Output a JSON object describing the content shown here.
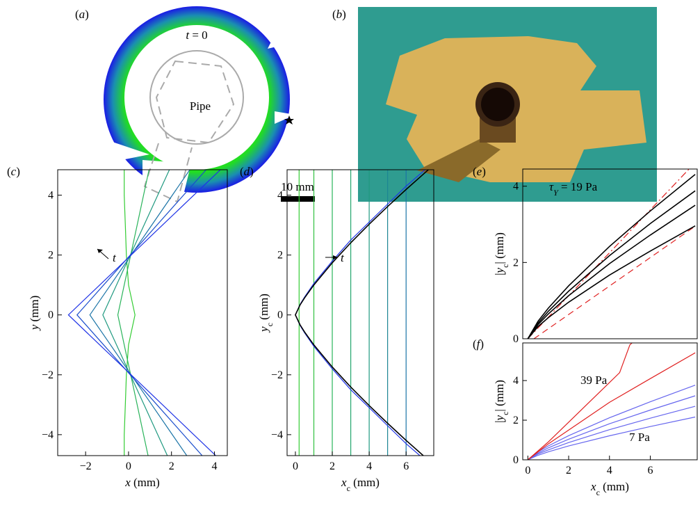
{
  "panels": {
    "a": {
      "label": [
        {
          "text": "("
        },
        {
          "text": "a",
          "italic": true
        },
        {
          "text": ")"
        }
      ],
      "time_label": [
        {
          "text": "t",
          "italic": true
        },
        {
          "text": " = 0"
        }
      ],
      "pipe_label": "Pipe",
      "scale_label": "10 mm"
    },
    "b": {
      "label": [
        {
          "text": "("
        },
        {
          "text": "b",
          "italic": true
        },
        {
          "text": ")"
        }
      ]
    }
  },
  "chart_data": [
    {
      "type": "line",
      "label": [
        {
          "text": "("
        },
        {
          "text": "c",
          "italic": true
        },
        {
          "text": ")"
        }
      ],
      "xlabel": [
        {
          "text": "x",
          "italic": true
        },
        {
          "text": " (mm)"
        }
      ],
      "ylabel": [
        {
          "text": "y",
          "italic": true
        },
        {
          "text": " (mm)"
        }
      ],
      "xlim": [
        -3.3,
        4.6
      ],
      "ylim": [
        -4.7,
        4.85
      ],
      "xticks": [
        {
          "value": -2,
          "label": "−2"
        },
        0,
        2,
        4
      ],
      "yticks": [
        {
          "value": -4,
          "label": "−4"
        },
        {
          "value": -2,
          "label": "−2"
        },
        0,
        2,
        4
      ],
      "annotations": [
        {
          "parts": [
            {
              "text": "t",
              "italic": true
            }
          ],
          "arrow": "up-left"
        }
      ],
      "series": [
        {
          "color": "#33cc33",
          "x": [
            -0.2,
            -0.2,
            -0.15,
            -0.1,
            0,
            0.3,
            0,
            -0.1,
            -0.15,
            -0.2,
            -0.2
          ],
          "values": [
            -5,
            -4,
            -3,
            -2,
            -1,
            0,
            1,
            2,
            3,
            4,
            5
          ]
        },
        {
          "color": "#29b35a",
          "x": [
            1.0,
            0.7,
            0.4,
            0.1,
            -0.2,
            -0.5,
            -0.2,
            0.1,
            0.4,
            0.7,
            1.0
          ],
          "values": [
            -5,
            -4,
            -3,
            -2,
            -1,
            0,
            1,
            2,
            3,
            4,
            5
          ]
        },
        {
          "color": "#1f9980",
          "x": [
            2.0,
            1.36,
            0.72,
            0.08,
            -0.56,
            -1.2,
            -0.56,
            0.08,
            0.72,
            1.36,
            2.0
          ],
          "values": [
            -5,
            -4,
            -3,
            -2,
            -1,
            0,
            1,
            2,
            3,
            4,
            5
          ]
        },
        {
          "color": "#1a73a6",
          "x": [
            3.0,
            2.04,
            1.08,
            0.12,
            -0.84,
            -1.8,
            -0.84,
            0.12,
            1.08,
            2.04,
            3.0
          ],
          "values": [
            -5,
            -4,
            -3,
            -2,
            -1,
            0,
            1,
            2,
            3,
            4,
            5
          ]
        },
        {
          "color": "#1a4dcc",
          "x": [
            3.8,
            2.56,
            1.32,
            0.08,
            -1.16,
            -2.4,
            -1.16,
            0.08,
            1.32,
            2.56,
            3.8
          ],
          "values": [
            -5,
            -4,
            -3,
            -2,
            -1,
            0,
            1,
            2,
            3,
            4,
            5
          ]
        },
        {
          "color": "#1f33e6",
          "x": [
            4.5,
            3.04,
            1.58,
            0.12,
            -1.34,
            -2.8,
            -1.34,
            0.12,
            1.58,
            3.04,
            4.5
          ],
          "values": [
            -5,
            -4,
            -3,
            -2,
            -1,
            0,
            1,
            2,
            3,
            4,
            5
          ]
        }
      ]
    },
    {
      "type": "line",
      "label": [
        {
          "text": "("
        },
        {
          "text": "d",
          "italic": true
        },
        {
          "text": ")"
        }
      ],
      "xlabel": [
        {
          "text": "x",
          "italic": true
        },
        {
          "text": "c",
          "sub": true
        },
        {
          "text": " (mm)"
        }
      ],
      "ylabel": [
        {
          "text": "y",
          "italic": true
        },
        {
          "text": "c",
          "sub": true
        },
        {
          "text": " (mm)"
        }
      ],
      "xlim": [
        -0.45,
        7.5
      ],
      "ylim": [
        -4.7,
        4.85
      ],
      "xticks": [
        0,
        2,
        4,
        6
      ],
      "yticks": [
        {
          "value": -4,
          "label": "−4"
        },
        {
          "value": -2,
          "label": "−2"
        },
        0,
        2,
        4
      ],
      "annotations": [
        {
          "parts": [
            {
              "text": "t",
              "italic": true
            }
          ],
          "arrow": "right"
        }
      ],
      "series": [
        {
          "color": "#33cc33",
          "x": [
            0.2,
            0.2
          ],
          "values": [
            -5,
            5
          ]
        },
        {
          "color": "#2fc040",
          "x": [
            1.0,
            1.0
          ],
          "values": [
            -5,
            5
          ]
        },
        {
          "color": "#29b35a",
          "x": [
            2.0,
            2.0
          ],
          "values": [
            -5,
            5
          ]
        },
        {
          "color": "#22a66d",
          "x": [
            3.0,
            3.0
          ],
          "values": [
            -5,
            5
          ]
        },
        {
          "color": "#1f9980",
          "x": [
            4.0,
            4.0
          ],
          "values": [
            -5,
            5
          ]
        },
        {
          "color": "#1c8693",
          "x": [
            5.0,
            5.0
          ],
          "values": [
            -5,
            5
          ]
        },
        {
          "color": "#1a73a6",
          "x": [
            6.0,
            6.0
          ],
          "values": [
            -5,
            5
          ]
        },
        {
          "color": "#1f33e6",
          "x": [
            7.5,
            6,
            5,
            4,
            3,
            2,
            1,
            0.5,
            0.25,
            0,
            0.25,
            0.5,
            1,
            2,
            3,
            4,
            5,
            6,
            7.5
          ],
          "values": [
            -5.1,
            -4.3,
            -3.7,
            -3.1,
            -2.5,
            -1.8,
            -1.05,
            -0.6,
            -0.35,
            0,
            0.35,
            0.6,
            1.05,
            1.8,
            2.5,
            3.1,
            3.7,
            4.3,
            5.1
          ]
        },
        {
          "color": "#000000",
          "x": [
            7.5,
            6,
            5,
            4,
            3,
            2,
            1,
            0.5,
            0.25,
            0,
            0.25,
            0.5,
            1,
            2,
            3,
            4,
            5,
            6,
            7.5
          ],
          "values": [
            -5.01,
            -4.19,
            -3.62,
            -3.03,
            -2.41,
            -1.74,
            -1,
            -0.57,
            -0.33,
            0,
            0.33,
            0.57,
            1,
            1.74,
            2.41,
            3.03,
            3.62,
            4.19,
            5.01
          ]
        }
      ]
    },
    {
      "type": "line",
      "label": [
        {
          "text": "("
        },
        {
          "text": "e",
          "italic": true
        },
        {
          "text": ")"
        }
      ],
      "ylabel": [
        {
          "text": "|"
        },
        {
          "text": "y",
          "italic": true
        },
        {
          "text": "c",
          "sub": true
        },
        {
          "text": "| (mm)"
        }
      ],
      "xlim": [
        -0.25,
        8.3
      ],
      "ylim": [
        0,
        4.45
      ],
      "yticks": [
        0,
        2,
        4
      ],
      "annotations": [
        {
          "parts": [
            {
              "text": "τ",
              "italic": true
            },
            {
              "text": "Y",
              "sub": true,
              "italic": true
            },
            {
              "text": " = 19 Pa"
            }
          ]
        }
      ],
      "series": [
        {
          "color": "#e02020",
          "dash": "dashdot",
          "x": [
            0,
            7.9
          ],
          "values": [
            0,
            4.45
          ]
        },
        {
          "color": "#e02020",
          "dash": "dash",
          "x": [
            0.3,
            8.2
          ],
          "values": [
            0,
            2.95
          ]
        },
        {
          "color": "#000000",
          "x": [
            0,
            0.5,
            1,
            2,
            4,
            6,
            8.2
          ],
          "values": [
            0,
            0.46,
            0.8,
            1.39,
            2.42,
            3.35,
            4.31
          ]
        },
        {
          "color": "#000000",
          "x": [
            0,
            0.5,
            1,
            2,
            4,
            6,
            8.2
          ],
          "values": [
            0,
            0.41,
            0.72,
            1.25,
            2.18,
            3.02,
            3.88
          ]
        },
        {
          "color": "#000000",
          "x": [
            0,
            0.5,
            1,
            2,
            4,
            6,
            8.2
          ],
          "values": [
            0,
            0.37,
            0.65,
            1.13,
            1.97,
            2.72,
            3.5
          ]
        },
        {
          "color": "#000000",
          "x": [
            0,
            0.5,
            1,
            2,
            4,
            6,
            8.2
          ],
          "values": [
            0,
            0.32,
            0.55,
            0.96,
            1.67,
            2.3,
            2.96
          ]
        }
      ]
    },
    {
      "type": "line",
      "label": [
        {
          "text": "("
        },
        {
          "text": "f",
          "italic": true
        },
        {
          "text": ")"
        }
      ],
      "xlabel": [
        {
          "text": "x",
          "italic": true
        },
        {
          "text": "c",
          "sub": true
        },
        {
          "text": " (mm)"
        }
      ],
      "ylabel": [
        {
          "text": "|"
        },
        {
          "text": "y",
          "italic": true
        },
        {
          "text": "c",
          "sub": true
        },
        {
          "text": "| (mm)"
        }
      ],
      "xlim": [
        -0.25,
        8.3
      ],
      "ylim": [
        0,
        5.9
      ],
      "xticks": [
        0,
        2,
        4,
        6
      ],
      "yticks": [
        0,
        2,
        4
      ],
      "annotations": [
        {
          "parts": [
            {
              "text": "39 Pa"
            }
          ],
          "color": "#e02020"
        },
        {
          "parts": [
            {
              "text": "7 Pa"
            }
          ],
          "color": "#6666ee"
        }
      ],
      "series": [
        {
          "color": "#6666ee",
          "x": [
            0,
            0.5,
            1,
            2,
            4,
            6,
            8.2
          ],
          "values": [
            0,
            0.4,
            0.7,
            1.22,
            2.12,
            2.93,
            3.77
          ]
        },
        {
          "color": "#6666ee",
          "x": [
            0,
            0.5,
            1,
            2,
            4,
            6,
            8.2
          ],
          "values": [
            0,
            0.34,
            0.6,
            1.04,
            1.82,
            2.51,
            3.23
          ]
        },
        {
          "color": "#6666ee",
          "x": [
            0,
            0.5,
            1,
            2,
            4,
            6,
            8.2
          ],
          "values": [
            0,
            0.29,
            0.5,
            0.87,
            1.52,
            2.1,
            2.7
          ]
        },
        {
          "color": "#6666ee",
          "x": [
            0,
            0.5,
            1,
            2,
            4,
            6,
            8.2
          ],
          "values": [
            0,
            0.23,
            0.4,
            0.7,
            1.21,
            1.68,
            2.16
          ]
        },
        {
          "color": "#e02020",
          "x": [
            0,
            1,
            2,
            3,
            4,
            6,
            8.2
          ],
          "values": [
            0,
            0.8,
            1.5,
            2.2,
            2.9,
            4.1,
            5.4
          ]
        },
        {
          "color": "#e02020",
          "x": [
            0,
            0.5,
            1,
            2,
            3,
            4,
            4.5,
            5,
            5.1
          ],
          "values": [
            0,
            0.45,
            0.9,
            1.9,
            2.9,
            3.9,
            4.4,
            5.8,
            5.9
          ]
        }
      ]
    }
  ]
}
